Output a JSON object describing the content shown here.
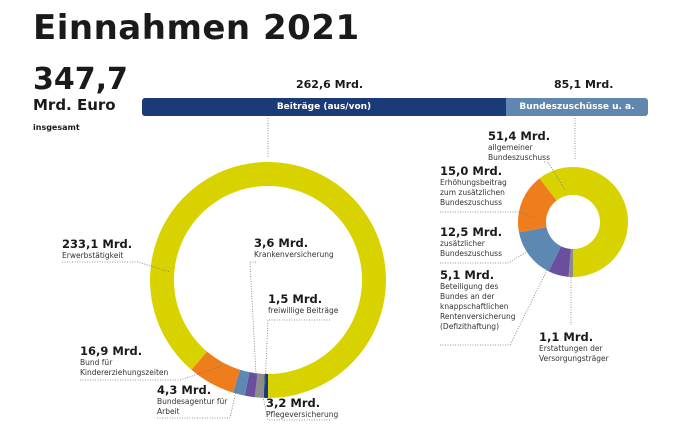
{
  "title": "Einnahmen 2021",
  "total": {
    "value": "347,7",
    "unit": "Mrd. Euro",
    "note": "insgesamt"
  },
  "colors": {
    "navy": "#1b3a78",
    "lightblue_bar": "#5f87b0",
    "yellow": "#d8d300",
    "orange": "#f07d1c",
    "blue": "#5d88b2",
    "purple": "#6a4f9e",
    "grey": "#8c8c8c"
  },
  "chart_data": [
    {
      "type": "bar",
      "orientation": "horizontal-stacked",
      "categories": [
        "Beiträge (aus/von)",
        "Bundeszuschüsse u. a."
      ],
      "values": [
        262.6,
        85.1
      ],
      "value_labels": [
        "262,6 Mrd.",
        "85,1 Mrd."
      ]
    },
    {
      "type": "pie",
      "style": "donut",
      "segments": [
        {
          "value": 1.5,
          "label": "1,5 Mrd.",
          "desc": "freiwillige Beiträge",
          "color": "#1b3a78"
        },
        {
          "value": 3.2,
          "label": "3,2 Mrd.",
          "desc": "Pflegeversicherung",
          "color": "#8c8c8c"
        },
        {
          "value": 3.6,
          "label": "3,6 Mrd.",
          "desc": "Krankenversicherung",
          "color": "#6a4f9e"
        },
        {
          "value": 4.3,
          "label": "4,3 Mrd.",
          "desc": "Bundesagentur für Arbeit",
          "color": "#5d88b2"
        },
        {
          "value": 16.9,
          "label": "16,9 Mrd.",
          "desc": "Bund für Kindererziehungszeiten",
          "color": "#f07d1c"
        },
        {
          "value": 233.1,
          "label": "233,1 Mrd.",
          "desc": "Erwerbstätigkeit",
          "color": "#d8d300"
        }
      ]
    },
    {
      "type": "pie",
      "style": "donut",
      "segments": [
        {
          "value": 1.1,
          "label": "1,1 Mrd.",
          "desc": "Erstattungen der Versorgungsträger",
          "color": "#8c8c8c"
        },
        {
          "value": 5.1,
          "label": "5,1 Mrd.",
          "desc": "Beteiligung des Bundes an der knappschaftlichen Rentenversicherung (Defizithaftung)",
          "color": "#6a4f9e"
        },
        {
          "value": 12.5,
          "label": "12,5 Mrd.",
          "desc": "zusätzlicher Bundeszuschuss",
          "color": "#5d88b2"
        },
        {
          "value": 15.0,
          "label": "15,0 Mrd.",
          "desc": "Erhöhungsbeitrag zum zusätzlichen Bundeszuschuss",
          "color": "#f07d1c"
        },
        {
          "value": 51.4,
          "label": "51,4 Mrd.",
          "desc": "allgemeiner Bundeszuschuss",
          "color": "#d8d300"
        }
      ]
    }
  ]
}
